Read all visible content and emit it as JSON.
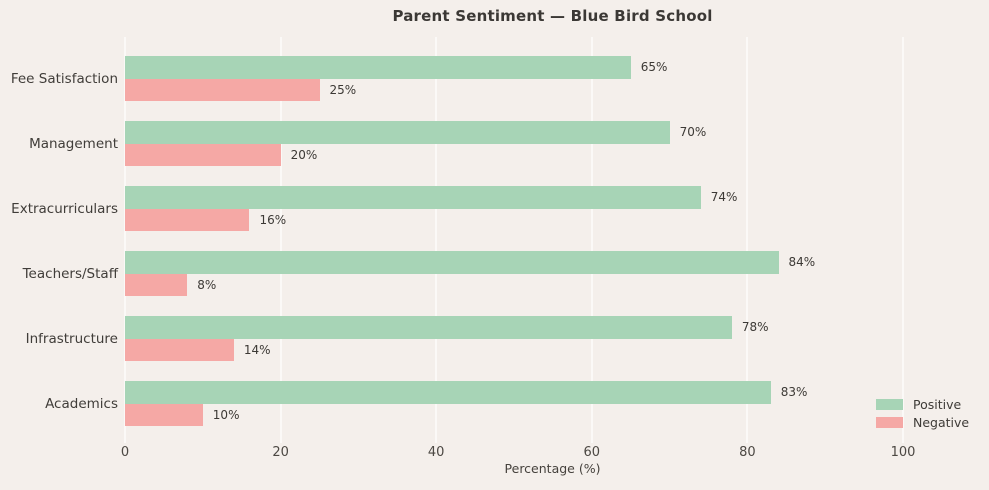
{
  "chart_data": {
    "type": "bar",
    "orientation": "horizontal",
    "title": "Parent Sentiment — Blue Bird School",
    "xlabel": "Percentage (%)",
    "categories": [
      "Fee Satisfaction",
      "Management",
      "Extracurriculars",
      "Teachers/Staff",
      "Infrastructure",
      "Academics"
    ],
    "series": [
      {
        "name": "Positive",
        "color": "#a7d4b6",
        "values": [
          65,
          70,
          74,
          84,
          78,
          83
        ]
      },
      {
        "name": "Negative",
        "color": "#f5a8a5",
        "values": [
          25,
          20,
          16,
          8,
          14,
          10
        ]
      }
    ],
    "value_labels": [
      {
        "positive": "65%",
        "negative": "25%"
      },
      {
        "positive": "70%",
        "negative": "20%"
      },
      {
        "positive": "74%",
        "negative": "16%"
      },
      {
        "positive": "84%",
        "negative": "8%"
      },
      {
        "positive": "78%",
        "negative": "14%"
      },
      {
        "positive": "83%",
        "negative": "10%"
      }
    ],
    "xticks": [
      "0",
      "20",
      "40",
      "60",
      "80",
      "100"
    ],
    "xlim": [
      0,
      110
    ],
    "grid": true,
    "legend_position": "lower right",
    "colors": {
      "background": "#f4efeb",
      "gridline": "#fbf9f7",
      "positive": "#a7d4b6",
      "negative": "#f5a8a5",
      "text": "#3c3935"
    }
  }
}
